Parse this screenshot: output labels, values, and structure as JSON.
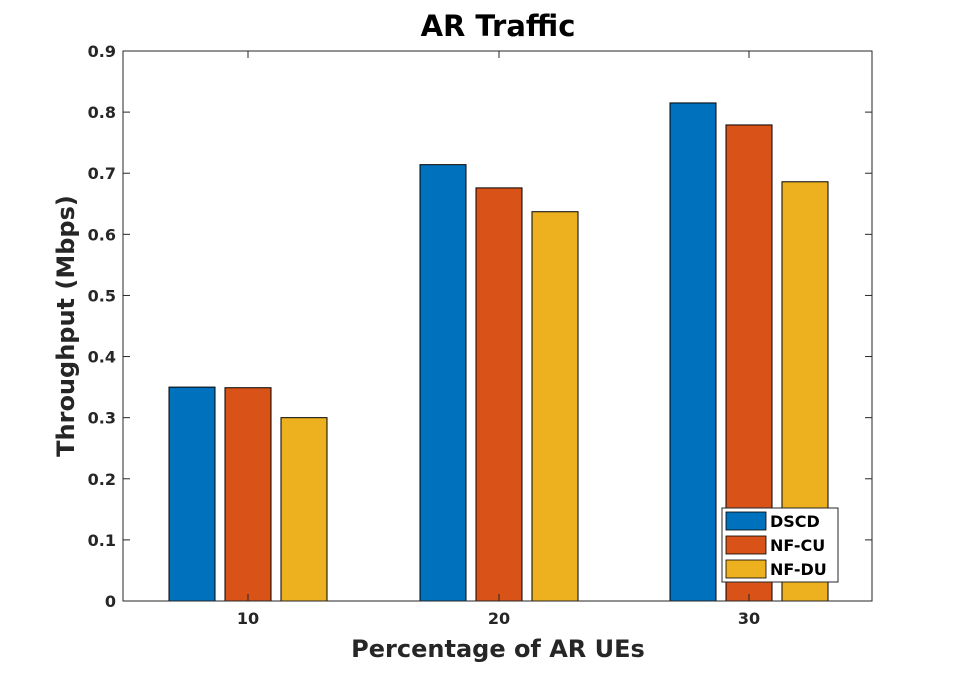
{
  "chart_data": {
    "type": "bar",
    "title": "AR Traffic",
    "xlabel": "Percentage of AR UEs",
    "ylabel": "Throughput (Mbps)",
    "categories": [
      "10",
      "20",
      "30"
    ],
    "ylim": [
      0,
      0.9
    ],
    "yticks": [
      "0",
      "0.1",
      "0.2",
      "0.3",
      "0.4",
      "0.5",
      "0.6",
      "0.7",
      "0.8",
      "0.9"
    ],
    "grid": false,
    "legend_position": "bottom-right",
    "series": [
      {
        "name": "DSCD",
        "color": "#0072BD",
        "values": [
          0.35,
          0.714,
          0.815
        ]
      },
      {
        "name": "NF-CU",
        "color": "#D95319",
        "values": [
          0.349,
          0.676,
          0.779
        ]
      },
      {
        "name": "NF-DU",
        "color": "#EDB120",
        "values": [
          0.3,
          0.637,
          0.686
        ]
      }
    ]
  }
}
